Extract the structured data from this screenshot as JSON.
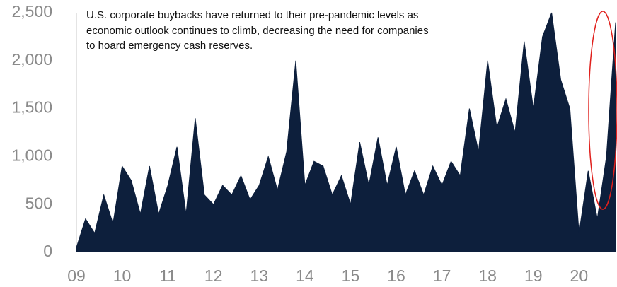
{
  "chart_data": {
    "type": "area",
    "annotations": [
      "U.S. corporate buybacks have returned to their pre-pandemic levels as",
      "economic outlook continues to climb, decreasing the need for companies",
      "to hoard emergency cash reserves."
    ],
    "x": [
      2009.0,
      2009.2,
      2009.4,
      2009.6,
      2009.8,
      2010.0,
      2010.2,
      2010.4,
      2010.6,
      2010.8,
      2011.0,
      2011.2,
      2011.4,
      2011.6,
      2011.8,
      2012.0,
      2012.2,
      2012.4,
      2012.6,
      2012.8,
      2013.0,
      2013.2,
      2013.4,
      2013.6,
      2013.8,
      2014.0,
      2014.2,
      2014.4,
      2014.6,
      2014.8,
      2015.0,
      2015.2,
      2015.4,
      2015.6,
      2015.8,
      2016.0,
      2016.2,
      2016.4,
      2016.6,
      2016.8,
      2017.0,
      2017.2,
      2017.4,
      2017.6,
      2017.8,
      2018.0,
      2018.2,
      2018.4,
      2018.6,
      2018.8,
      2019.0,
      2019.2,
      2019.4,
      2019.6,
      2019.8,
      2020.0,
      2020.2,
      2020.4,
      2020.6,
      2020.8
    ],
    "values": [
      50,
      350,
      200,
      600,
      300,
      900,
      750,
      400,
      900,
      400,
      700,
      1100,
      400,
      1400,
      600,
      500,
      700,
      600,
      800,
      550,
      700,
      1000,
      650,
      1050,
      2000,
      700,
      950,
      900,
      600,
      800,
      500,
      1150,
      700,
      1200,
      700,
      1100,
      600,
      850,
      600,
      900,
      700,
      950,
      800,
      1500,
      1050,
      2000,
      1300,
      1600,
      1250,
      2200,
      1500,
      2250,
      2500,
      1800,
      1500,
      200,
      850,
      350,
      1000,
      2400
    ],
    "color": "#0d1f3c",
    "xlim": [
      2009,
      2020.8
    ],
    "xticks": [
      {
        "value": 2009,
        "label": "09"
      },
      {
        "value": 2010,
        "label": "10"
      },
      {
        "value": 2011,
        "label": "11"
      },
      {
        "value": 2012,
        "label": "12"
      },
      {
        "value": 2013,
        "label": "13"
      },
      {
        "value": 2014,
        "label": "14"
      },
      {
        "value": 2015,
        "label": "15"
      },
      {
        "value": 2016,
        "label": "16"
      },
      {
        "value": 2017,
        "label": "17"
      },
      {
        "value": 2018,
        "label": "18"
      },
      {
        "value": 2019,
        "label": "19"
      },
      {
        "value": 2020,
        "label": "20"
      }
    ],
    "ylim": [
      0,
      2500
    ],
    "yticks": [
      0,
      500,
      {
        "value": 1000,
        "label": "1,000"
      },
      {
        "value": 1500,
        "label": "1,500"
      },
      {
        "value": 2000,
        "label": "2,000"
      },
      {
        "value": 2500,
        "label": "2,500"
      }
    ]
  }
}
